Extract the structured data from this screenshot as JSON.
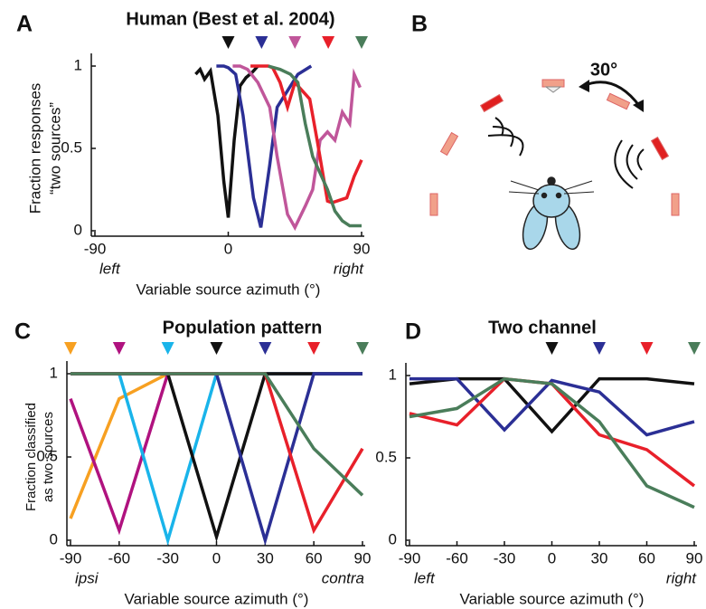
{
  "chart_data": [
    {
      "type": "line",
      "panel_label": "A",
      "title": "Human (Best et al. 2004)",
      "ylabel": [
        "Fraction responses",
        "“two sources”"
      ],
      "xlabel": "Variable source azimuth (°)",
      "x_note_left": "left",
      "x_note_right": "right",
      "xlim": [
        -90,
        90
      ],
      "ylim": [
        0,
        1
      ],
      "xticks": [
        -90,
        0,
        90
      ],
      "yticks": [
        0,
        0.5,
        1
      ],
      "marker_x": [
        0,
        22.5,
        45,
        67.5,
        90
      ],
      "marker_colors": [
        "#111111",
        "#2b2f95",
        "#c0569a",
        "#e8202a",
        "#4a7d5a"
      ],
      "series": [
        {
          "color": "#111111",
          "x": [
            -22,
            -19,
            -16,
            -12,
            -7,
            -3,
            0,
            4,
            8,
            12,
            16,
            20
          ],
          "values": [
            0.95,
            0.98,
            0.92,
            0.97,
            0.7,
            0.3,
            0.08,
            0.55,
            0.88,
            0.93,
            0.96,
            1.0
          ]
        },
        {
          "color": "#2b2f95",
          "x": [
            -8,
            -3,
            0,
            5,
            10,
            17,
            22,
            28,
            33,
            40,
            47,
            56
          ],
          "values": [
            1.0,
            1.0,
            0.99,
            0.95,
            0.7,
            0.2,
            0.02,
            0.4,
            0.75,
            0.85,
            0.95,
            1.0
          ]
        },
        {
          "color": "#c0569a",
          "x": [
            3,
            8,
            13,
            20,
            28,
            33,
            40,
            45,
            52,
            57,
            62,
            67,
            72,
            77,
            82,
            85,
            89
          ],
          "values": [
            1.0,
            1.0,
            0.98,
            0.9,
            0.75,
            0.45,
            0.1,
            0.02,
            0.15,
            0.25,
            0.55,
            0.6,
            0.55,
            0.72,
            0.65,
            0.95,
            0.87
          ]
        },
        {
          "color": "#e8202a",
          "x": [
            15,
            20,
            27,
            30,
            35,
            40,
            45,
            55,
            60,
            67,
            70,
            80,
            85,
            90
          ],
          "values": [
            1.0,
            1.0,
            1.0,
            0.99,
            0.9,
            0.75,
            0.9,
            0.8,
            0.55,
            0.18,
            0.17,
            0.2,
            0.33,
            0.43
          ]
        },
        {
          "color": "#4a7d5a",
          "x": [
            27,
            35,
            42,
            47,
            52,
            57,
            62,
            67,
            72,
            77,
            82,
            90
          ],
          "values": [
            1.0,
            0.98,
            0.95,
            0.9,
            0.65,
            0.45,
            0.35,
            0.25,
            0.12,
            0.06,
            0.03,
            0.03
          ]
        }
      ]
    },
    {
      "type": "line",
      "panel_label": "C",
      "title": "Population pattern",
      "ylabel": [
        "Fraction classified",
        "as two sources"
      ],
      "xlabel": "Variable source azimuth (°)",
      "x_note_left": "ipsi",
      "x_note_right": "contra",
      "xlim": [
        -90,
        90
      ],
      "ylim": [
        0,
        1
      ],
      "xticks": [
        -90,
        -60,
        -30,
        0,
        30,
        60,
        90
      ],
      "yticks": [
        0,
        0.5,
        1
      ],
      "marker_x": [
        -90,
        -60,
        -30,
        0,
        30,
        60,
        90
      ],
      "marker_colors": [
        "#f7a021",
        "#b0127f",
        "#19b4ea",
        "#111111",
        "#2b2f95",
        "#e8202a",
        "#4a7d5a"
      ],
      "series": [
        {
          "color": "#f7a021",
          "x": [
            -90,
            -60,
            -30,
            0,
            30,
            60,
            90
          ],
          "values": [
            0.13,
            0.85,
            1,
            1,
            1,
            1,
            1
          ]
        },
        {
          "color": "#b0127f",
          "x": [
            -90,
            -60,
            -30,
            0,
            30,
            60,
            90
          ],
          "values": [
            0.85,
            0.06,
            1,
            1,
            1,
            1,
            1
          ]
        },
        {
          "color": "#19b4ea",
          "x": [
            -90,
            -60,
            -30,
            0,
            30,
            60,
            90
          ],
          "values": [
            1,
            1,
            0,
            1,
            1,
            1,
            1
          ]
        },
        {
          "color": "#111111",
          "x": [
            -90,
            -60,
            -30,
            0,
            30,
            60,
            90
          ],
          "values": [
            1,
            1,
            1,
            0.02,
            1,
            1,
            1
          ]
        },
        {
          "color": "#2b2f95",
          "x": [
            -90,
            -60,
            -30,
            0,
            30,
            60,
            90
          ],
          "values": [
            1,
            1,
            1,
            1,
            0,
            1,
            1
          ]
        },
        {
          "color": "#e8202a",
          "x": [
            -90,
            -60,
            -30,
            0,
            30,
            60,
            90
          ],
          "values": [
            1,
            1,
            1,
            1,
            1,
            0.06,
            0.55
          ]
        },
        {
          "color": "#4a7d5a",
          "x": [
            -90,
            -60,
            -30,
            0,
            30,
            60,
            90
          ],
          "values": [
            1,
            1,
            1,
            1,
            1,
            0.55,
            0.27
          ]
        }
      ]
    },
    {
      "type": "line",
      "panel_label": "D",
      "title": "Two channel",
      "xlabel": "Variable source azimuth (°)",
      "x_note_left": "left",
      "x_note_right": "right",
      "xlim": [
        -90,
        90
      ],
      "ylim": [
        0,
        1
      ],
      "xticks": [
        -90,
        -60,
        -30,
        0,
        30,
        60,
        90
      ],
      "yticks": [
        0,
        0.5,
        1
      ],
      "marker_x": [
        0,
        30,
        60,
        90
      ],
      "marker_colors": [
        "#111111",
        "#2b2f95",
        "#e8202a",
        "#4a7d5a"
      ],
      "series": [
        {
          "color": "#111111",
          "x": [
            -90,
            -60,
            -30,
            0,
            30,
            60,
            90
          ],
          "values": [
            0.95,
            0.98,
            0.98,
            0.66,
            0.98,
            0.98,
            0.95
          ]
        },
        {
          "color": "#2b2f95",
          "x": [
            -90,
            -60,
            -30,
            0,
            30,
            60,
            90
          ],
          "values": [
            0.98,
            0.98,
            0.67,
            0.97,
            0.9,
            0.64,
            0.72
          ]
        },
        {
          "color": "#e8202a",
          "x": [
            -90,
            -60,
            -30,
            0,
            30,
            60,
            90
          ],
          "values": [
            0.77,
            0.7,
            0.98,
            0.95,
            0.64,
            0.55,
            0.33
          ]
        },
        {
          "color": "#4a7d5a",
          "x": [
            -90,
            -60,
            -30,
            0,
            30,
            60,
            90
          ],
          "values": [
            0.75,
            0.8,
            0.98,
            0.95,
            0.72,
            0.33,
            0.2
          ]
        }
      ]
    }
  ],
  "panel_b": {
    "panel_label": "B",
    "angle_label": "30°"
  }
}
